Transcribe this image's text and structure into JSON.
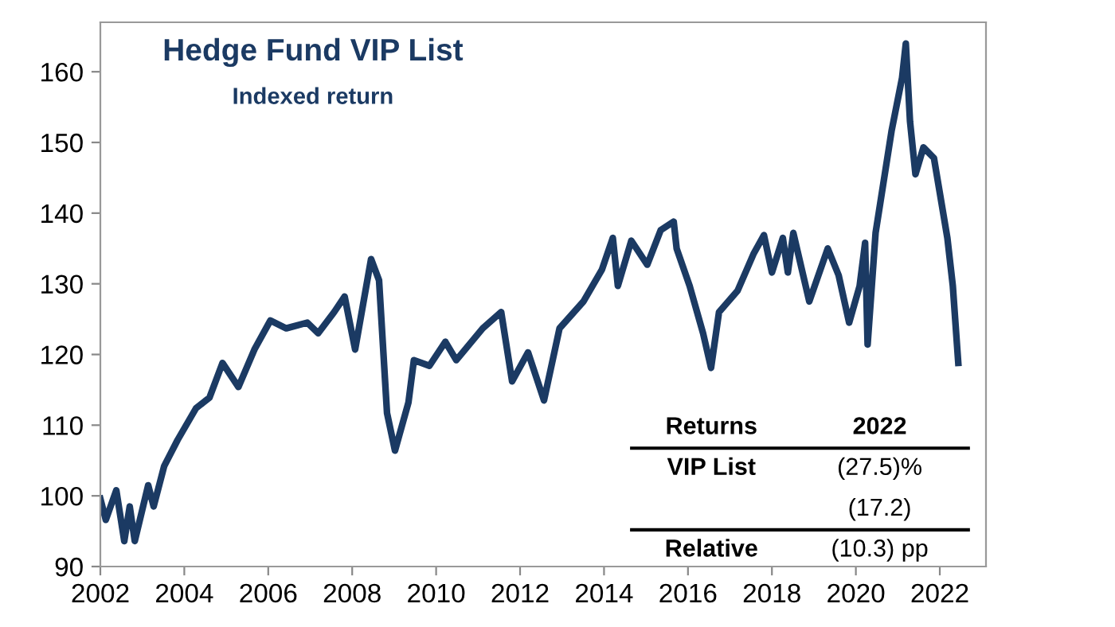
{
  "chart_data": {
    "type": "line",
    "title": "Hedge Fund VIP List",
    "subtitle": "Indexed return",
    "x": [
      2002.0,
      2002.13,
      2002.38,
      2002.57,
      2002.7,
      2002.82,
      2003.14,
      2003.27,
      2003.52,
      2003.84,
      2004.28,
      2004.6,
      2004.91,
      2005.29,
      2005.67,
      2006.05,
      2006.43,
      2006.93,
      2007.19,
      2007.57,
      2007.82,
      2008.07,
      2008.45,
      2008.64,
      2008.83,
      2009.02,
      2009.34,
      2009.47,
      2009.84,
      2010.22,
      2010.48,
      2011.11,
      2011.55,
      2011.81,
      2012.19,
      2012.57,
      2012.94,
      2013.51,
      2013.95,
      2014.21,
      2014.33,
      2014.65,
      2015.03,
      2015.35,
      2015.66,
      2015.73,
      2016.04,
      2016.36,
      2016.55,
      2016.74,
      2017.18,
      2017.56,
      2017.81,
      2018.0,
      2018.26,
      2018.38,
      2018.51,
      2018.89,
      2019.33,
      2019.59,
      2019.84,
      2020.09,
      2020.22,
      2020.28,
      2020.47,
      2020.85,
      2021.1,
      2021.19,
      2021.29,
      2021.42,
      2021.61,
      2021.86,
      2022.18,
      2022.31,
      2022.44
    ],
    "series": [
      {
        "color": "#1b3a63",
        "values": [
          99.6,
          96.6,
          100.8,
          93.6,
          98.5,
          93.6,
          101.5,
          98.5,
          104.2,
          107.9,
          112.4,
          113.9,
          118.8,
          115.4,
          120.7,
          124.8,
          123.7,
          124.5,
          123,
          126,
          128.2,
          120.7,
          133.5,
          130.5,
          111.7,
          106.4,
          113.2,
          119.2,
          118.4,
          121.8,
          119.2,
          123.7,
          126,
          116.2,
          120.3,
          113.5,
          123.7,
          127.5,
          132,
          136.5,
          129.7,
          136.1,
          132.7,
          137.6,
          138.8,
          135,
          129.7,
          123,
          118.1,
          126,
          129,
          134.2,
          136.9,
          131.6,
          136.5,
          131.6,
          137.2,
          127.5,
          135,
          131.2,
          124.5,
          129.7,
          135.8,
          121.4,
          137.2,
          151.6,
          159.1,
          164,
          153,
          145.5,
          149.3,
          147.8,
          136.5,
          129.7,
          118.8
        ]
      }
    ],
    "xlim": [
      2002,
      2023.1
    ],
    "ylim": [
      90,
      167
    ],
    "xticks": [
      2002,
      2004,
      2006,
      2008,
      2010,
      2012,
      2014,
      2016,
      2018,
      2020,
      2022
    ],
    "yticks": [
      90,
      100,
      110,
      120,
      130,
      140,
      150,
      160
    ],
    "grid": false,
    "legend": false,
    "marker": "none",
    "line_style": "solid",
    "annotations": [
      "Returns",
      "2022",
      "VIP List",
      "(27.5)%",
      "(17.2)",
      "Relative",
      "(10.3) pp"
    ]
  }
}
